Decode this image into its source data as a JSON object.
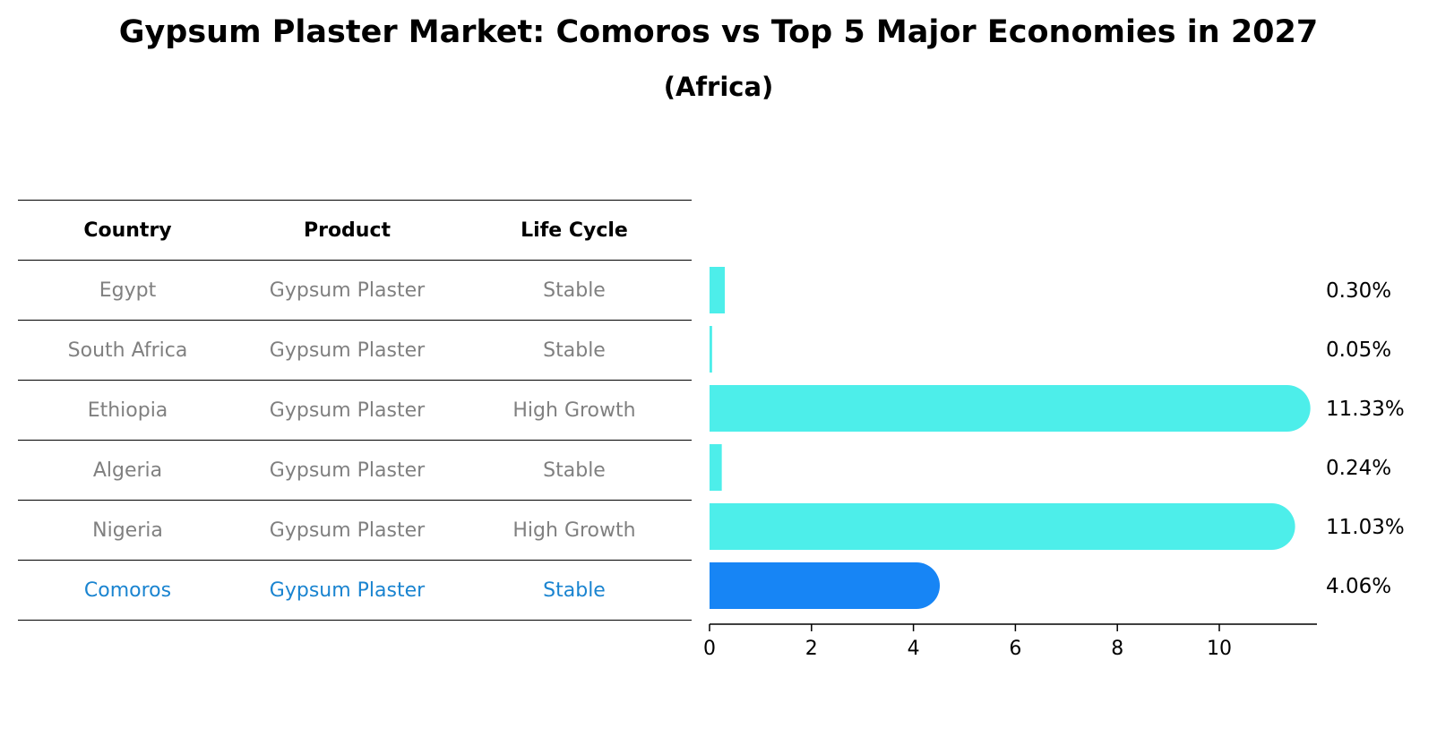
{
  "title": "Gypsum Plaster Market: Comoros vs Top 5 Major Economies in 2027",
  "subtitle": "(Africa)",
  "table": {
    "headers": [
      "Country",
      "Product",
      "Life Cycle"
    ],
    "rows": [
      {
        "country": "Egypt",
        "product": "Gypsum Plaster",
        "life_cycle": "Stable",
        "highlight": false
      },
      {
        "country": "South Africa",
        "product": "Gypsum Plaster",
        "life_cycle": "Stable",
        "highlight": false
      },
      {
        "country": "Ethiopia",
        "product": "Gypsum Plaster",
        "life_cycle": "High Growth",
        "highlight": false
      },
      {
        "country": "Algeria",
        "product": "Gypsum Plaster",
        "life_cycle": "Stable",
        "highlight": false
      },
      {
        "country": "Nigeria",
        "product": "Gypsum Plaster",
        "life_cycle": "High Growth",
        "highlight": false
      },
      {
        "country": "Comoros",
        "product": "Gypsum Plaster",
        "life_cycle": "Stable",
        "highlight": true
      }
    ]
  },
  "chart_data": {
    "type": "bar",
    "orientation": "horizontal",
    "categories": [
      "Egypt",
      "South Africa",
      "Ethiopia",
      "Algeria",
      "Nigeria",
      "Comoros"
    ],
    "values": [
      0.3,
      0.05,
      11.33,
      0.24,
      11.03,
      4.06
    ],
    "value_labels": [
      "0.30%",
      "0.05%",
      "11.33%",
      "0.24%",
      "11.03%",
      "4.06%"
    ],
    "xticks": [
      0,
      2,
      4,
      6,
      8,
      10
    ],
    "xlim": [
      0,
      11.9
    ],
    "grid": false,
    "colors": {
      "default": "#4deeea",
      "highlight": "#1785f5"
    }
  }
}
